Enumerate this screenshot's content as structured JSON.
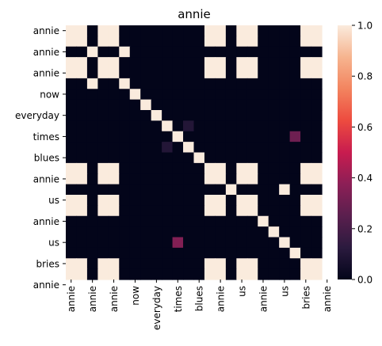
{
  "chart_data": {
    "type": "heatmap",
    "title": "annie",
    "x_tick_labels": [
      "annie",
      "annie",
      "annie",
      "now",
      "everyday",
      "times",
      "blues",
      "annie",
      "us",
      "annie",
      "us",
      "bries",
      "annie"
    ],
    "y_tick_labels": [
      "annie",
      "annie",
      "annie",
      "now",
      "everyday",
      "times",
      "blues",
      "annie",
      "us",
      "annie",
      "us",
      "bries",
      "annie"
    ],
    "token_labels": [
      "annie",
      "annie",
      "",
      "annie",
      "",
      "now",
      "",
      "everyday",
      "",
      "times",
      "",
      "blues",
      "",
      "annie",
      "",
      "us",
      "",
      "annie",
      "",
      "us",
      "",
      "bries",
      "",
      "annie"
    ],
    "matrix": [
      [
        1,
        1,
        0,
        1,
        1,
        0,
        0,
        0,
        0,
        0,
        0,
        0,
        0,
        1,
        1,
        0,
        1,
        1,
        0,
        0,
        0,
        0,
        1,
        1
      ],
      [
        1,
        1,
        0,
        1,
        1,
        0,
        0,
        0,
        0,
        0,
        0,
        0,
        0,
        1,
        1,
        0,
        1,
        1,
        0,
        0,
        0,
        0,
        1,
        1
      ],
      [
        0,
        0,
        1,
        0,
        0,
        1,
        0,
        0,
        0,
        0,
        0,
        0,
        0,
        0,
        0,
        0,
        0,
        0,
        0,
        0,
        0,
        0,
        0,
        0
      ],
      [
        1,
        1,
        0,
        1,
        1,
        0,
        0,
        0,
        0,
        0,
        0,
        0,
        0,
        1,
        1,
        0,
        1,
        1,
        0,
        0,
        0,
        0,
        1,
        1
      ],
      [
        1,
        1,
        0,
        1,
        1,
        0,
        0,
        0,
        0,
        0,
        0,
        0,
        0,
        1,
        1,
        0,
        1,
        1,
        0,
        0,
        0,
        0,
        1,
        1
      ],
      [
        0,
        0,
        1,
        0,
        0,
        1,
        0,
        0,
        0,
        0,
        0,
        0,
        0,
        0,
        0,
        0,
        0,
        0,
        0,
        0,
        0,
        0,
        0,
        0
      ],
      [
        0,
        0,
        0,
        0,
        0,
        0,
        1,
        0,
        0,
        0,
        0,
        0,
        0,
        0,
        0,
        0,
        0,
        0,
        0,
        0,
        0,
        0,
        0,
        0
      ],
      [
        0,
        0,
        0,
        0,
        0,
        0,
        0,
        1,
        0,
        0,
        0,
        0,
        0,
        0,
        0,
        0,
        0,
        0,
        0,
        0,
        0,
        0,
        0,
        0
      ],
      [
        0,
        0,
        0,
        0,
        0,
        0,
        0,
        0,
        1,
        0,
        0,
        0,
        0,
        0,
        0,
        0,
        0,
        0,
        0,
        0,
        0,
        0,
        0,
        0
      ],
      [
        0,
        0,
        0,
        0,
        0,
        0,
        0,
        0,
        0,
        1,
        0,
        0.1,
        0,
        0,
        0,
        0,
        0,
        0,
        0,
        0,
        0,
        0,
        0,
        0
      ],
      [
        0,
        0,
        0,
        0,
        0,
        0,
        0,
        0,
        0,
        0,
        1,
        0,
        0,
        0,
        0,
        0,
        0,
        0,
        0,
        0,
        0,
        0.3,
        0,
        0
      ],
      [
        0,
        0,
        0,
        0,
        0,
        0,
        0,
        0,
        0,
        0.1,
        0,
        1,
        0,
        0,
        0,
        0,
        0,
        0,
        0,
        0,
        0,
        0,
        0,
        0
      ],
      [
        0,
        0,
        0,
        0,
        0,
        0,
        0,
        0,
        0,
        0,
        0,
        0,
        1,
        0,
        0,
        0,
        0,
        0,
        0,
        0,
        0,
        0,
        0,
        0
      ],
      [
        1,
        1,
        0,
        1,
        1,
        0,
        0,
        0,
        0,
        0,
        0,
        0,
        0,
        1,
        1,
        0,
        1,
        1,
        0,
        0,
        0,
        0,
        1,
        1
      ],
      [
        1,
        1,
        0,
        1,
        1,
        0,
        0,
        0,
        0,
        0,
        0,
        0,
        0,
        1,
        1,
        0,
        1,
        1,
        0,
        0,
        0,
        0,
        1,
        1
      ],
      [
        0,
        0,
        0,
        0,
        0,
        0,
        0,
        0,
        0,
        0,
        0,
        0,
        0,
        0,
        0,
        1,
        0,
        0,
        0,
        0,
        1,
        0,
        0,
        0
      ],
      [
        1,
        1,
        0,
        1,
        1,
        0,
        0,
        0,
        0,
        0,
        0,
        0,
        0,
        1,
        1,
        0,
        1,
        1,
        0,
        0,
        0,
        0,
        1,
        1
      ],
      [
        1,
        1,
        0,
        1,
        1,
        0,
        0,
        0,
        0,
        0,
        0,
        0,
        0,
        1,
        1,
        0,
        1,
        1,
        0,
        0,
        0,
        0,
        1,
        1
      ],
      [
        0,
        0,
        0,
        0,
        0,
        0,
        0,
        0,
        0,
        0,
        0,
        0,
        0,
        0,
        0,
        0,
        0,
        0,
        1,
        0,
        0,
        0,
        0,
        0
      ],
      [
        0,
        0,
        0,
        0,
        0,
        0,
        0,
        0,
        0,
        0,
        0,
        0,
        0,
        0,
        0,
        0,
        0,
        0,
        0,
        1,
        0,
        0,
        0,
        0
      ],
      [
        0,
        0,
        0,
        0,
        0,
        0,
        0,
        0,
        0,
        0,
        0.35,
        0,
        0,
        0,
        0,
        0,
        0,
        0,
        0,
        0,
        1,
        0,
        0,
        0
      ],
      [
        0,
        0,
        0,
        0,
        0,
        0,
        0,
        0,
        0,
        0,
        0,
        0,
        0,
        0,
        0,
        0,
        0,
        0,
        0,
        0,
        0,
        1,
        0,
        0
      ],
      [
        1,
        1,
        0,
        1,
        1,
        0,
        0,
        0,
        0,
        0,
        0,
        0,
        0,
        1,
        1,
        0,
        1,
        1,
        0,
        0,
        0,
        0,
        1,
        1
      ],
      [
        1,
        1,
        0,
        1,
        1,
        0,
        0,
        0,
        0,
        0,
        0,
        0,
        0,
        1,
        1,
        0,
        1,
        1,
        0,
        0,
        0,
        0,
        1,
        1
      ]
    ],
    "colorbar": {
      "min": 0,
      "max": 1,
      "ticks": [
        "0.0",
        "0.2",
        "0.4",
        "0.6",
        "0.8",
        "1.0"
      ],
      "colormap": "rocket",
      "stops": [
        "#03051a",
        "#2b1a3e",
        "#5a1f4e",
        "#8c1f56",
        "#c81c4f",
        "#ed4b3f",
        "#f3845f",
        "#f6b48f",
        "#faebdd"
      ]
    },
    "grid": false,
    "legend": "colorbar-right"
  }
}
